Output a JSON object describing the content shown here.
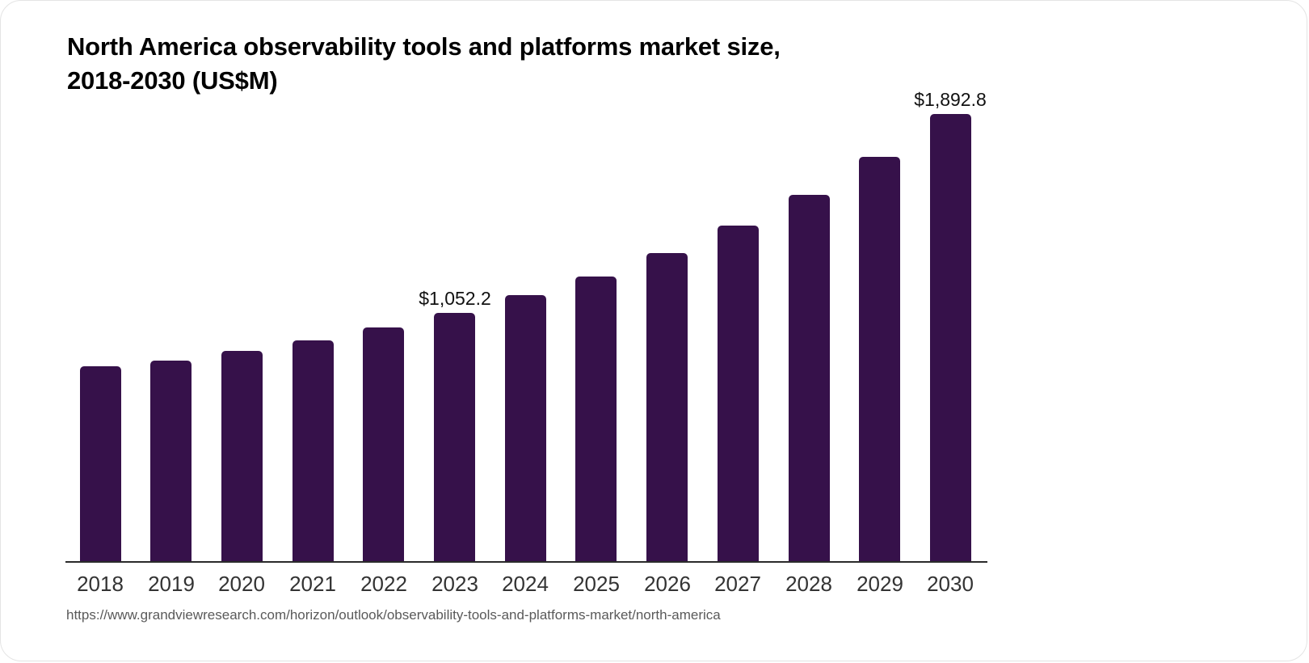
{
  "chart_data": {
    "type": "bar",
    "title": "North America observability tools and platforms market size, 2018-2030 (US$M)",
    "title_lines": [
      "North America observability tools and platforms market size,",
      "2018-2030 (US$M)"
    ],
    "categories": [
      "2018",
      "2019",
      "2020",
      "2021",
      "2022",
      "2023",
      "2024",
      "2025",
      "2026",
      "2027",
      "2028",
      "2029",
      "2030"
    ],
    "values": [
      825,
      850,
      890,
      935,
      990,
      1052.2,
      1125,
      1205,
      1305,
      1420,
      1550,
      1710,
      1892.8
    ],
    "value_labels": {
      "2023": "$1,052.2",
      "2030": "$1,892.8"
    },
    "xlabel": "",
    "ylabel": "",
    "ylim": [
      0,
      1950
    ],
    "grid": false,
    "legend": false,
    "bar_color": "#36114A"
  },
  "source": {
    "url": "https://www.grandviewresearch.com/horizon/outlook/observability-tools-and-platforms-market/north-america"
  },
  "colors": {
    "bar": "#36114A",
    "axis_line": "#2b2b2b",
    "title_text": "#000000",
    "tick_text": "#333333",
    "value_label_text": "#111111",
    "source_text": "#5a5a5a",
    "card_background": "#ffffff",
    "card_border": "#e4e4e4"
  }
}
